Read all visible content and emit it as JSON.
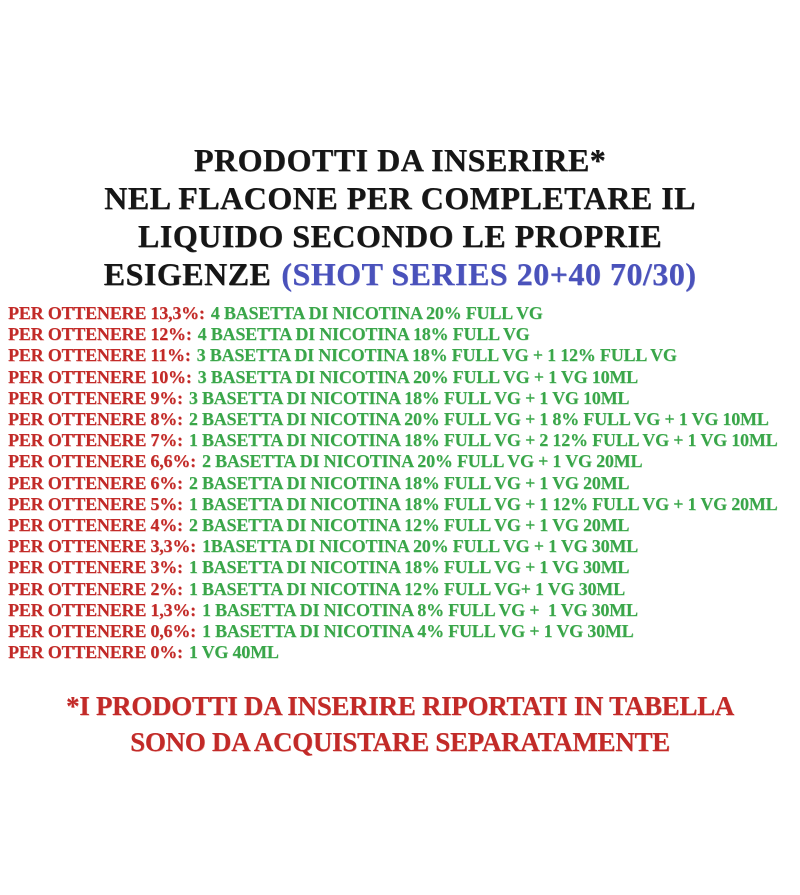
{
  "title": {
    "line1": "PRODOTTI DA INSERIRE*",
    "line2": "NEL FLACONE PER COMPLETARE IL",
    "line3": "LIQUIDO SECONDO LE PROPRIE",
    "line4_black": "ESIGENZE",
    "line4_blue": "(SHOT SERIES 20+40 70/30)"
  },
  "rows": [
    {
      "label": "PER OTTENERE 13,3%:",
      "value": "4 BASETTA DI NICOTINA 20% FULL VG"
    },
    {
      "label": "PER OTTENERE 12%:",
      "value": "4 BASETTA DI NICOTINA 18% FULL VG"
    },
    {
      "label": "PER OTTENERE 11%:",
      "value": "3 BASETTA DI NICOTINA 18% FULL VG + 1 12% FULL VG"
    },
    {
      "label": "PER OTTENERE 10%:",
      "value": "3 BASETTA DI NICOTINA 20% FULL VG + 1 VG 10ML"
    },
    {
      "label": "PER OTTENERE 9%:",
      "value": "3 BASETTA DI NICOTINA 18% FULL VG + 1 VG 10ML"
    },
    {
      "label": "PER OTTENERE 8%:",
      "value": "2 BASETTA DI NICOTINA 20% FULL VG + 1 8% FULL VG + 1 VG 10ML"
    },
    {
      "label": "PER OTTENERE 7%:",
      "value": "1 BASETTA DI NICOTINA 18% FULL VG + 2 12% FULL VG + 1 VG 10ML"
    },
    {
      "label": "PER OTTENERE 6,6%:",
      "value": "2 BASETTA DI NICOTINA 20% FULL VG + 1 VG 20ML"
    },
    {
      "label": "PER OTTENERE 6%:",
      "value": "2 BASETTA DI NICOTINA 18% FULL VG + 1 VG 20ML"
    },
    {
      "label": "PER OTTENERE 5%:",
      "value": "1 BASETTA DI NICOTINA 18% FULL VG + 1 12% FULL VG + 1 VG 20ML"
    },
    {
      "label": "PER OTTENERE 4%:",
      "value": "2 BASETTA DI NICOTINA 12% FULL VG + 1 VG 20ML"
    },
    {
      "label": "PER OTTENERE 3,3%:",
      "value": "1BASETTA DI NICOTINA 20% FULL VG + 1 VG 30ML"
    },
    {
      "label": "PER OTTENERE 3%:",
      "value": "1 BASETTA DI NICOTINA 18% FULL VG + 1 VG 30ML"
    },
    {
      "label": "PER OTTENERE 2%:",
      "value": "1 BASETTA DI NICOTINA 12% FULL VG+ 1 VG 30ML"
    },
    {
      "label": "PER OTTENERE 1,3%:",
      "value": "1 BASETTA DI NICOTINA 8% FULL VG +  1 VG 30ML"
    },
    {
      "label": "PER OTTENERE 0,6%:",
      "value": "1 BASETTA DI NICOTINA 4% FULL VG + 1 VG 30ML"
    },
    {
      "label": "PER OTTENERE 0%:",
      "value": "1 VG 40ML"
    }
  ],
  "footer": {
    "line1": "*I PRODOTTI DA INSERIRE RIPORTATI IN TABELLA",
    "line2": "SONO DA ACQUISTARE SEPARATAMENTE"
  },
  "colors": {
    "red": "#c22a28",
    "green": "#3aa64a",
    "blue": "#4a52bb",
    "ink": "#161616",
    "background": "#ffffff"
  }
}
